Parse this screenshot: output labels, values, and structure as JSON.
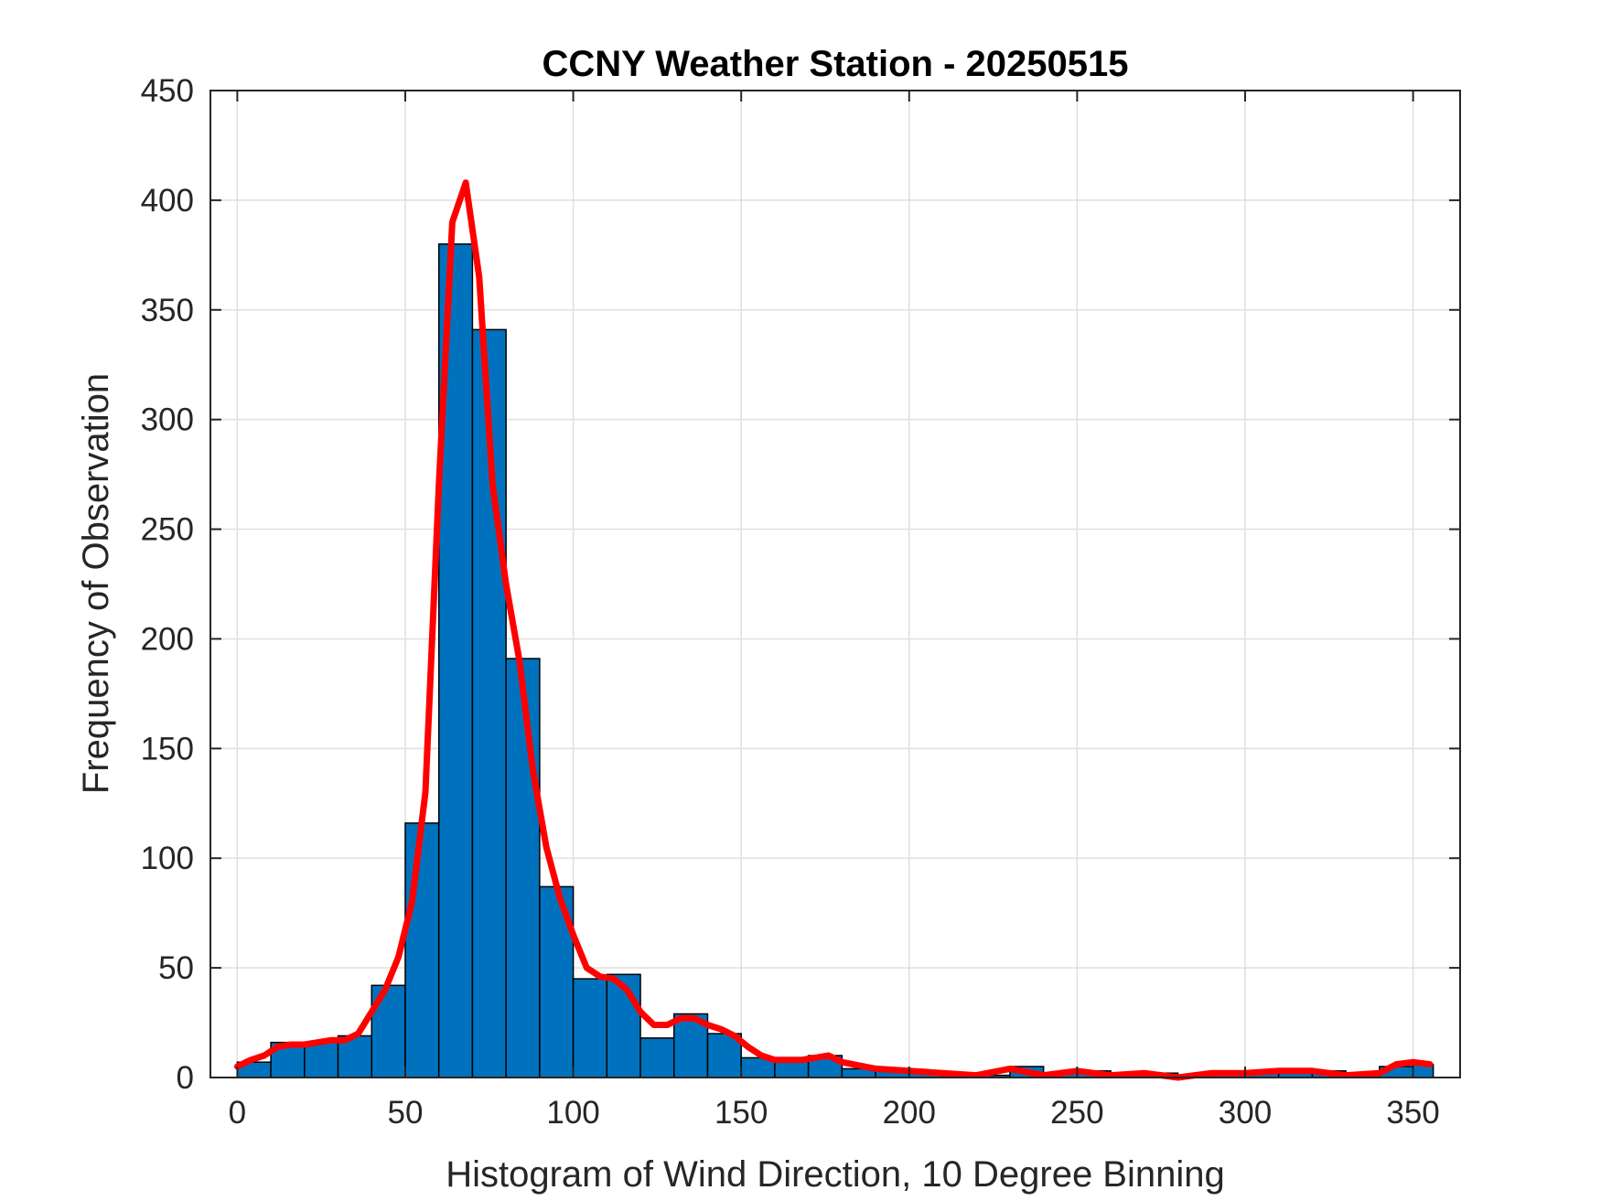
{
  "chart_data": {
    "type": "bar",
    "title": "CCNY Weather Station - 20250515",
    "xlabel": "Histogram of Wind Direction, 10 Degree Binning",
    "ylabel": "Frequency of Observation",
    "xlim": [
      -8,
      364
    ],
    "ylim": [
      0,
      450
    ],
    "xticks": [
      0,
      50,
      100,
      150,
      200,
      250,
      300,
      350
    ],
    "xtick_labels": [
      "0",
      "50",
      "100",
      "150",
      "200",
      "250",
      "300",
      "350"
    ],
    "yticks": [
      0,
      50,
      100,
      150,
      200,
      250,
      300,
      350,
      400,
      450
    ],
    "ytick_labels": [
      "0",
      "50",
      "100",
      "150",
      "200",
      "250",
      "300",
      "350",
      "400",
      "450"
    ],
    "grid": true,
    "bin_edges": [
      0,
      10,
      20,
      30,
      40,
      50,
      60,
      70,
      80,
      90,
      100,
      110,
      120,
      130,
      140,
      150,
      160,
      170,
      180,
      190,
      200,
      210,
      220,
      230,
      240,
      250,
      260,
      270,
      280,
      290,
      300,
      310,
      320,
      330,
      340,
      350,
      356
    ],
    "histogram_values": [
      7,
      16,
      16,
      19,
      42,
      116,
      380,
      341,
      191,
      87,
      45,
      47,
      18,
      29,
      20,
      9,
      9,
      10,
      4,
      3,
      2,
      1,
      1,
      5,
      2,
      3,
      1,
      2,
      1,
      2,
      3,
      3,
      3,
      1,
      5,
      6
    ],
    "bar_color": "#0072bd",
    "line_color": "#ff0000",
    "smoothed_line": {
      "x": [
        0,
        4,
        8,
        12,
        16,
        20,
        24,
        28,
        32,
        36,
        40,
        44,
        48,
        52,
        56,
        60,
        64,
        68,
        72,
        76,
        80,
        84,
        88,
        92,
        96,
        100,
        104,
        108,
        112,
        116,
        120,
        124,
        128,
        132,
        136,
        140,
        144,
        148,
        152,
        156,
        160,
        164,
        168,
        172,
        176,
        180,
        190,
        200,
        210,
        220,
        230,
        240,
        250,
        260,
        270,
        280,
        290,
        300,
        310,
        320,
        330,
        340,
        345,
        350,
        355
      ],
      "y": [
        5,
        8,
        10,
        14,
        15,
        15,
        16,
        17,
        17,
        20,
        30,
        40,
        55,
        80,
        130,
        270,
        390,
        408,
        365,
        270,
        225,
        190,
        140,
        105,
        82,
        65,
        50,
        46,
        45,
        40,
        30,
        24,
        24,
        27,
        27,
        24,
        22,
        19,
        14,
        10,
        8,
        8,
        8,
        9,
        10,
        7,
        4,
        3,
        2,
        1,
        4,
        1,
        3,
        1,
        2,
        0,
        2,
        2,
        3,
        3,
        1,
        2,
        6,
        7,
        6
      ]
    }
  }
}
